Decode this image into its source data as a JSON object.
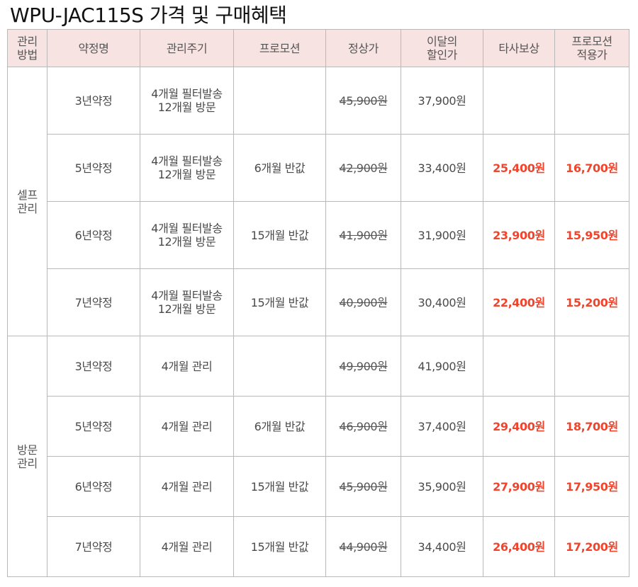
{
  "title": "WPU-JAC115S 가격 및 구매혜택",
  "headers": {
    "method": [
      "관리",
      "방법"
    ],
    "contract": "약정명",
    "cycle": "관리주기",
    "promo": "프로모션",
    "regular": "정상가",
    "discount": [
      "이달의",
      "할인가"
    ],
    "other": "타사보상",
    "promo_price": [
      "프로모션",
      "적용가"
    ]
  },
  "groups": [
    {
      "name": [
        "셀프",
        "관리"
      ],
      "rows": [
        {
          "contract": "3년약정",
          "cycle": [
            "4개월 필터발송",
            "12개월 방문"
          ],
          "promo": "",
          "regular": "45,900원",
          "discount": "37,900원",
          "other": "",
          "promo_price": ""
        },
        {
          "contract": "5년약정",
          "cycle": [
            "4개월 필터발송",
            "12개월 방문"
          ],
          "promo": "6개월 반값",
          "regular": "42,900원",
          "discount": "33,400원",
          "other": "25,400원",
          "promo_price": "16,700원"
        },
        {
          "contract": "6년약정",
          "cycle": [
            "4개월 필터발송",
            "12개월 방문"
          ],
          "promo": "15개월 반값",
          "regular": "41,900원",
          "discount": "31,900원",
          "other": "23,900원",
          "promo_price": "15,950원"
        },
        {
          "contract": "7년약정",
          "cycle": [
            "4개월 필터발송",
            "12개월 방문"
          ],
          "promo": "15개월 반값",
          "regular": "40,900원",
          "discount": "30,400원",
          "other": "22,400원",
          "promo_price": "15,200원"
        }
      ]
    },
    {
      "name": [
        "방문",
        "관리"
      ],
      "rows": [
        {
          "contract": "3년약정",
          "cycle": [
            "4개월 관리"
          ],
          "promo": "",
          "regular": "49,900원",
          "discount": "41,900원",
          "other": "",
          "promo_price": ""
        },
        {
          "contract": "5년약정",
          "cycle": [
            "4개월 관리"
          ],
          "promo": "6개월 반값",
          "regular": "46,900원",
          "discount": "37,400원",
          "other": "29,400원",
          "promo_price": "18,700원"
        },
        {
          "contract": "6년약정",
          "cycle": [
            "4개월 관리"
          ],
          "promo": "15개월 반값",
          "regular": "45,900원",
          "discount": "35,900원",
          "other": "27,900원",
          "promo_price": "17,950원"
        },
        {
          "contract": "7년약정",
          "cycle": [
            "4개월 관리"
          ],
          "promo": "15개월 반값",
          "regular": "44,900원",
          "discount": "34,400원",
          "other": "26,400원",
          "promo_price": "17,200원"
        }
      ]
    }
  ]
}
